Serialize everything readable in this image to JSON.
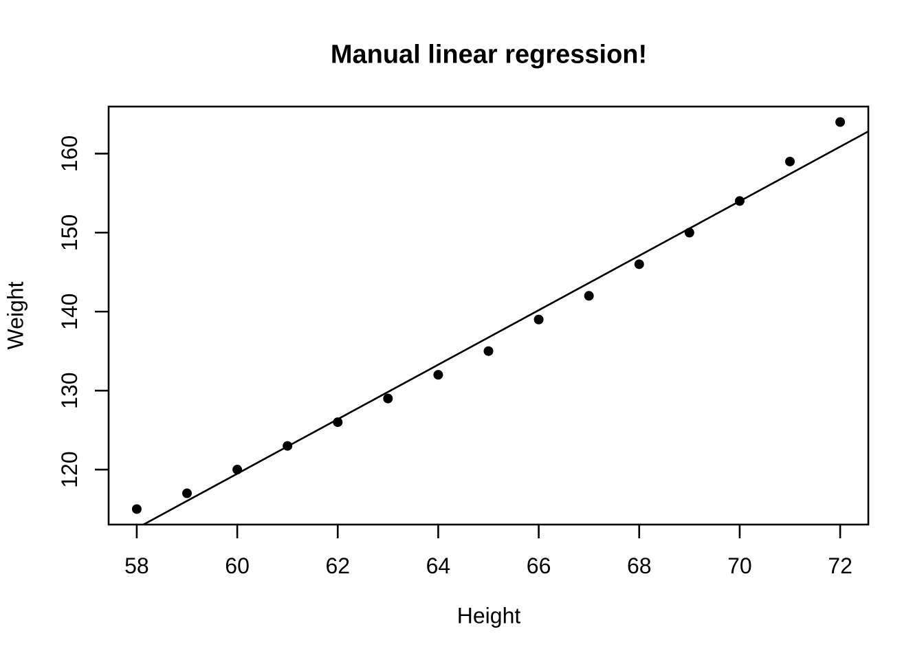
{
  "figure": {
    "background_color": "#ffffff",
    "foreground_color": "#000000"
  },
  "chart_data": {
    "type": "scatter",
    "title": "Manual linear regression!",
    "xlabel": "Height",
    "ylabel": "Weight",
    "x": [
      58,
      59,
      60,
      61,
      62,
      63,
      64,
      65,
      66,
      67,
      68,
      69,
      70,
      71,
      72
    ],
    "y": [
      115,
      117,
      120,
      123,
      126,
      129,
      132,
      135,
      139,
      142,
      146,
      150,
      154,
      159,
      164
    ],
    "regression_line": {
      "slope": 3.45,
      "intercept": -87.52
    },
    "xlim": [
      57.44,
      72.56
    ],
    "ylim": [
      113.04,
      165.96
    ],
    "x_ticks": [
      58,
      60,
      62,
      64,
      66,
      68,
      70,
      72
    ],
    "y_ticks": [
      120,
      130,
      140,
      150,
      160
    ],
    "grid": false,
    "legend": "none",
    "point_color": "#000000",
    "line_color": "#000000",
    "axis_color": "#000000"
  }
}
